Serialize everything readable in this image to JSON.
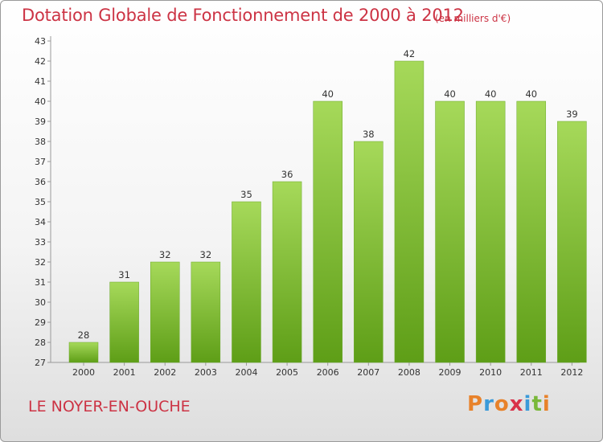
{
  "chart_data": {
    "type": "bar",
    "title": "Dotation Globale de Fonctionnement de 2000 à 2012",
    "subtitle": "(en milliers d'€)",
    "categories": [
      "2000",
      "2001",
      "2002",
      "2003",
      "2004",
      "2005",
      "2006",
      "2007",
      "2008",
      "2009",
      "2010",
      "2011",
      "2012"
    ],
    "values": [
      28,
      31,
      32,
      32,
      35,
      36,
      40,
      38,
      42,
      40,
      40,
      40,
      39
    ],
    "ylim": [
      27,
      43
    ],
    "yticks": [
      27,
      28,
      29,
      30,
      31,
      32,
      33,
      34,
      35,
      36,
      37,
      38,
      39,
      40,
      41,
      42,
      43
    ],
    "grid": false,
    "bar_color": "#7fbf3a",
    "xlabel": "",
    "ylabel": ""
  },
  "footer": {
    "place": "LE NOYER-EN-OUCHE",
    "logo": "Proxiti"
  },
  "colors": {
    "title": "#cc3344",
    "logo_letters": [
      "#e8822a",
      "#3a9ad9",
      "#e8822a",
      "#d9324a",
      "#3a9ad9",
      "#7ab83a",
      "#e8822a"
    ]
  }
}
